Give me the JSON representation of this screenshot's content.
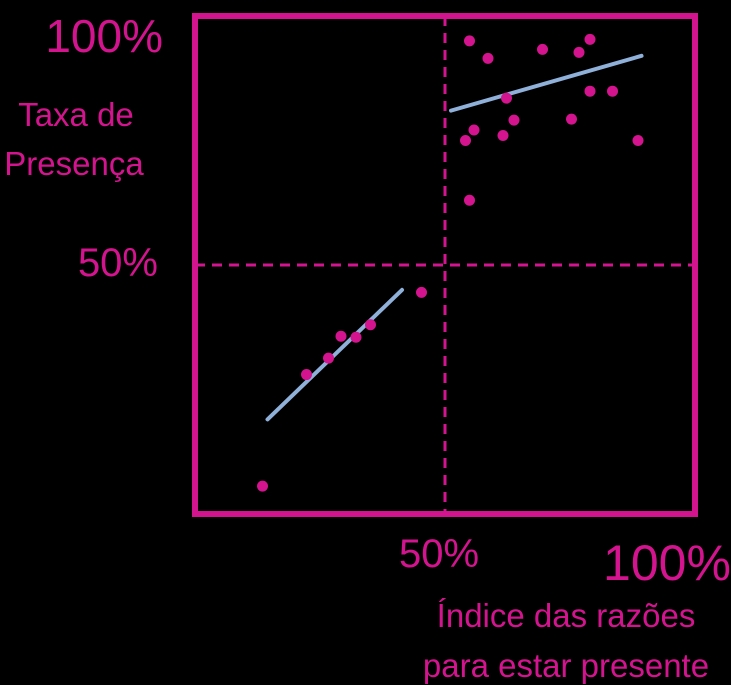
{
  "chart_data": {
    "type": "scatter",
    "title": "",
    "xlabel": [
      "Índice das razões",
      "para estar presente"
    ],
    "ylabel": [
      "Taxa de",
      "Presença"
    ],
    "xlim": [
      0,
      100
    ],
    "ylim": [
      0,
      100
    ],
    "x_ticks": [
      {
        "value": 50,
        "label": "50%"
      },
      {
        "value": 100,
        "label": "100%"
      }
    ],
    "y_ticks": [
      {
        "value": 50,
        "label": "50%"
      },
      {
        "value": 100,
        "label": "100%"
      }
    ],
    "quadrant_dividers": {
      "x": 50,
      "y": 50
    },
    "grid": false,
    "legend": "none",
    "colors": {
      "points": "#d4148f",
      "frame": "#d4148f",
      "trend": "#8fb0d8",
      "background": "#000000"
    },
    "series": [
      {
        "points": [
          {
            "x": 13.5,
            "y": 5.6
          },
          {
            "x": 22.3,
            "y": 28.0
          },
          {
            "x": 26.7,
            "y": 31.3
          },
          {
            "x": 29.2,
            "y": 35.7
          },
          {
            "x": 32.2,
            "y": 35.5
          },
          {
            "x": 35.1,
            "y": 38.0
          },
          {
            "x": 45.3,
            "y": 44.5
          }
        ],
        "trend": [
          {
            "x": 14.5,
            "y": 19.0
          },
          {
            "x": 41.4,
            "y": 45.0
          }
        ]
      },
      {
        "points": [
          {
            "x": 54.9,
            "y": 95.0
          },
          {
            "x": 58.6,
            "y": 91.5
          },
          {
            "x": 69.5,
            "y": 93.3
          },
          {
            "x": 76.8,
            "y": 92.7
          },
          {
            "x": 79.0,
            "y": 95.3
          },
          {
            "x": 62.3,
            "y": 83.5
          },
          {
            "x": 79.0,
            "y": 84.9
          },
          {
            "x": 83.5,
            "y": 84.9
          },
          {
            "x": 63.8,
            "y": 79.1
          },
          {
            "x": 75.3,
            "y": 79.3
          },
          {
            "x": 55.8,
            "y": 77.1
          },
          {
            "x": 54.1,
            "y": 75.0
          },
          {
            "x": 61.6,
            "y": 76.0
          },
          {
            "x": 88.6,
            "y": 75.0
          },
          {
            "x": 54.9,
            "y": 63.0
          }
        ],
        "trend": [
          {
            "x": 51.2,
            "y": 81.0
          },
          {
            "x": 89.3,
            "y": 92.0
          }
        ]
      }
    ]
  }
}
